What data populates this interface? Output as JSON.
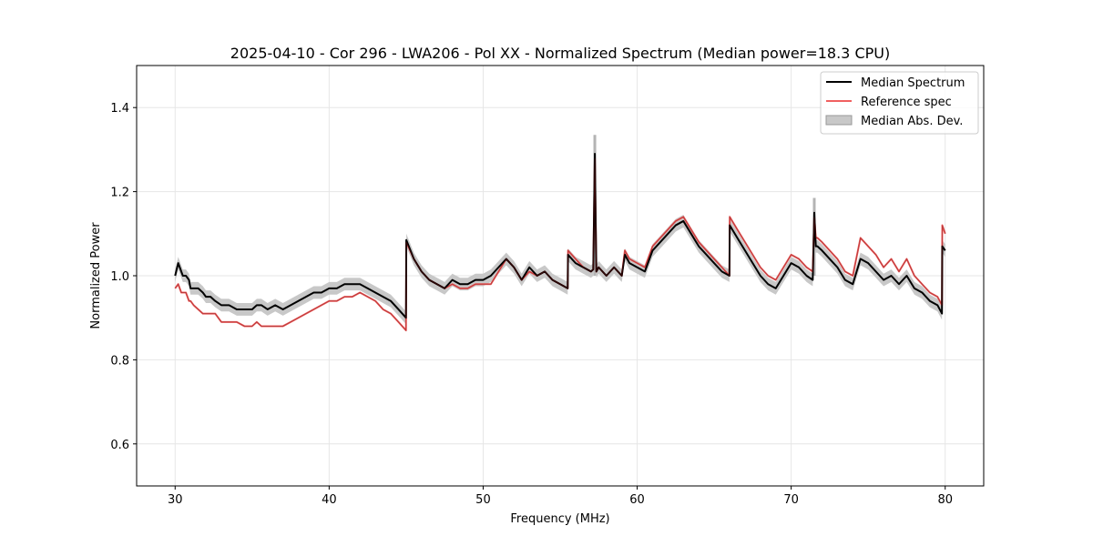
{
  "chart_data": {
    "type": "line",
    "title": "2025-04-10 - Cor 296 - LWA206 - Pol XX - Normalized Spectrum (Median power=18.3 CPU)",
    "xlabel": "Frequency (MHz)",
    "ylabel": "Normalized Power",
    "xlim": [
      27.5,
      82.5
    ],
    "ylim": [
      0.5,
      1.5
    ],
    "xticks": [
      30,
      40,
      50,
      60,
      70,
      80
    ],
    "yticks": [
      0.6,
      0.8,
      1.0,
      1.2,
      1.4
    ],
    "xtick_labels": [
      "30",
      "40",
      "50",
      "60",
      "70",
      "80"
    ],
    "ytick_labels": [
      "0.6",
      "0.8",
      "1.0",
      "1.2",
      "1.4"
    ],
    "grid": true,
    "legend_position": "top-right",
    "legend": {
      "median": "Median Spectrum",
      "reference": "Reference spec",
      "mad": "Median Abs. Dev."
    },
    "colors": {
      "median": "#000000",
      "reference": "#f06060",
      "mad": "#c8c8c8",
      "overlap": "#7a1010"
    },
    "series": [
      {
        "name": "Median Spectrum",
        "x": [
          30.0,
          30.2,
          30.4,
          30.5,
          30.7,
          30.9,
          31.0,
          31.2,
          31.5,
          31.8,
          32.0,
          32.3,
          32.6,
          33.0,
          33.5,
          34.0,
          34.5,
          35.0,
          35.3,
          35.6,
          36.0,
          36.5,
          37.0,
          37.5,
          38.0,
          38.5,
          39.0,
          39.5,
          40.0,
          40.5,
          41.0,
          41.5,
          42.0,
          42.5,
          43.0,
          43.5,
          44.0,
          44.5,
          44.99,
          45.01,
          45.5,
          46.0,
          46.5,
          47.0,
          47.5,
          48.0,
          48.5,
          49.0,
          49.5,
          50.0,
          50.5,
          51.0,
          51.5,
          52.0,
          52.5,
          53.0,
          53.5,
          54.0,
          54.5,
          55.0,
          55.49,
          55.51,
          56.0,
          56.5,
          57.0,
          57.15,
          57.25,
          57.35,
          57.5,
          58.0,
          58.5,
          59.0,
          59.2,
          59.5,
          60.0,
          60.5,
          61.0,
          61.5,
          62.0,
          62.5,
          63.0,
          63.5,
          64.0,
          64.5,
          65.0,
          65.5,
          65.99,
          66.01,
          66.5,
          67.0,
          67.5,
          68.0,
          68.5,
          69.0,
          69.5,
          70.0,
          70.5,
          71.0,
          71.4,
          71.5,
          71.6,
          71.7,
          72.0,
          72.5,
          73.0,
          73.5,
          74.0,
          74.5,
          75.0,
          75.5,
          76.0,
          76.5,
          77.0,
          77.5,
          78.0,
          78.5,
          79.0,
          79.5,
          79.79,
          79.81,
          80.0
        ],
        "values": [
          1.0,
          1.03,
          1.01,
          1.0,
          1.0,
          0.99,
          0.97,
          0.97,
          0.97,
          0.96,
          0.95,
          0.95,
          0.94,
          0.93,
          0.93,
          0.92,
          0.92,
          0.92,
          0.93,
          0.93,
          0.92,
          0.93,
          0.92,
          0.93,
          0.94,
          0.95,
          0.96,
          0.96,
          0.97,
          0.97,
          0.98,
          0.98,
          0.98,
          0.97,
          0.96,
          0.95,
          0.94,
          0.92,
          0.9,
          1.085,
          1.04,
          1.01,
          0.99,
          0.98,
          0.97,
          0.99,
          0.98,
          0.98,
          0.99,
          0.99,
          1.0,
          1.02,
          1.04,
          1.02,
          0.99,
          1.02,
          1.0,
          1.01,
          0.99,
          0.98,
          0.97,
          1.05,
          1.03,
          1.02,
          1.01,
          1.015,
          1.29,
          1.01,
          1.02,
          1.0,
          1.02,
          1.0,
          1.05,
          1.03,
          1.02,
          1.01,
          1.06,
          1.08,
          1.1,
          1.12,
          1.13,
          1.1,
          1.07,
          1.05,
          1.03,
          1.01,
          1.0,
          1.12,
          1.09,
          1.06,
          1.03,
          1.0,
          0.98,
          0.97,
          1.0,
          1.03,
          1.02,
          1.0,
          0.99,
          1.15,
          1.07,
          1.07,
          1.06,
          1.04,
          1.02,
          0.99,
          0.98,
          1.04,
          1.03,
          1.01,
          0.99,
          1.0,
          0.98,
          1.0,
          0.97,
          0.96,
          0.94,
          0.93,
          0.91,
          1.07,
          1.06
        ]
      },
      {
        "name": "Reference spec",
        "x": [
          30.0,
          30.2,
          30.4,
          30.5,
          30.7,
          30.9,
          31.0,
          31.2,
          31.5,
          31.8,
          32.0,
          32.3,
          32.6,
          33.0,
          33.5,
          34.0,
          34.5,
          35.0,
          35.3,
          35.6,
          36.0,
          36.5,
          37.0,
          37.5,
          38.0,
          38.5,
          39.0,
          39.5,
          40.0,
          40.5,
          41.0,
          41.5,
          42.0,
          42.5,
          43.0,
          43.5,
          44.0,
          44.5,
          44.99,
          45.01,
          45.5,
          46.0,
          46.5,
          47.0,
          47.5,
          48.0,
          48.5,
          49.0,
          49.5,
          50.0,
          50.5,
          51.0,
          51.5,
          52.0,
          52.5,
          53.0,
          53.5,
          54.0,
          54.5,
          55.0,
          55.49,
          55.51,
          56.0,
          56.5,
          57.0,
          57.15,
          57.25,
          57.35,
          57.5,
          58.0,
          58.5,
          59.0,
          59.2,
          59.5,
          60.0,
          60.5,
          61.0,
          61.5,
          62.0,
          62.5,
          63.0,
          63.5,
          64.0,
          64.5,
          65.0,
          65.5,
          65.99,
          66.01,
          66.5,
          67.0,
          67.5,
          68.0,
          68.5,
          69.0,
          69.5,
          70.0,
          70.5,
          71.0,
          71.4,
          71.5,
          71.6,
          71.7,
          72.0,
          72.5,
          73.0,
          73.5,
          74.0,
          74.5,
          75.0,
          75.5,
          76.0,
          76.5,
          77.0,
          77.5,
          78.0,
          78.5,
          79.0,
          79.5,
          79.79,
          79.81,
          80.0
        ],
        "values": [
          0.97,
          0.98,
          0.96,
          0.96,
          0.96,
          0.94,
          0.94,
          0.93,
          0.92,
          0.91,
          0.91,
          0.91,
          0.91,
          0.89,
          0.89,
          0.89,
          0.88,
          0.88,
          0.89,
          0.88,
          0.88,
          0.88,
          0.88,
          0.89,
          0.9,
          0.91,
          0.92,
          0.93,
          0.94,
          0.94,
          0.95,
          0.95,
          0.96,
          0.95,
          0.94,
          0.92,
          0.91,
          0.89,
          0.87,
          1.08,
          1.04,
          1.01,
          0.99,
          0.98,
          0.97,
          0.98,
          0.97,
          0.97,
          0.98,
          0.98,
          0.98,
          1.01,
          1.04,
          1.02,
          0.99,
          1.01,
          1.0,
          1.01,
          0.99,
          0.98,
          0.97,
          1.06,
          1.04,
          1.02,
          1.01,
          1.015,
          1.28,
          1.01,
          1.02,
          1.0,
          1.02,
          1.0,
          1.06,
          1.04,
          1.03,
          1.02,
          1.07,
          1.09,
          1.11,
          1.13,
          1.14,
          1.11,
          1.08,
          1.06,
          1.04,
          1.02,
          1.0,
          1.14,
          1.11,
          1.08,
          1.05,
          1.02,
          1.0,
          0.99,
          1.02,
          1.05,
          1.04,
          1.02,
          1.01,
          1.14,
          1.09,
          1.09,
          1.08,
          1.06,
          1.04,
          1.01,
          1.0,
          1.09,
          1.07,
          1.05,
          1.02,
          1.04,
          1.01,
          1.04,
          1.0,
          0.98,
          0.96,
          0.95,
          0.93,
          1.12,
          1.1
        ]
      }
    ],
    "mad_band_width": 0.015,
    "spikes": [
      {
        "x": 57.25,
        "mad_top": 1.335
      },
      {
        "x": 71.5,
        "mad_top": 1.185
      }
    ]
  }
}
